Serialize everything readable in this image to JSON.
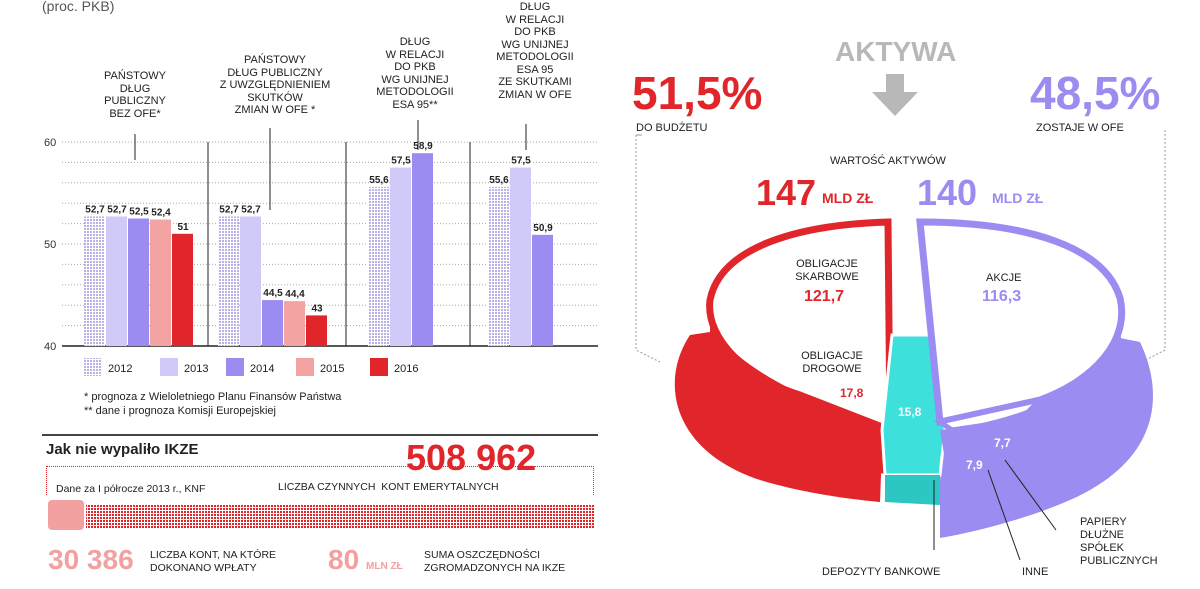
{
  "unit_note": "(proc. PKB)",
  "group_headers": [
    "PAŃSTOWY\nDŁUG\nPUBLICZNY\nBEZ OFE*",
    "PAŃSTOWY\nDŁUG PUBLICZNY\nZ UWZGLĘDNIENIEM\nSKUTKÓW\nZMIAN W OFE *",
    "DŁUG\nW RELACJI\nDO PKB\nWG UNIJNEJ\nMETODOLOGII\nESA 95**",
    "DŁUG\nW RELACJI\nDO PKB\nWG UNIJNEJ\nMETODOLOGII\nESA 95\nZE SKUTKAMI\nZMIAN W OFE"
  ],
  "footnotes": [
    "* prognoza z Wieloletniego Planu Finansów Państwa",
    "** dane i prognoza Komisji Europejskiej"
  ],
  "colors": {
    "y2012": "#dcd9f5",
    "y2013": "#cfcaf7",
    "y2014": "#9a8cf0",
    "y2015": "#f4a3a3",
    "y2016": "#e0262b",
    "teal": "#3ee0dc",
    "red": "#e0262b",
    "purple": "#9a8cf0",
    "pink": "#f2a0a0"
  },
  "chart_data": [
    {
      "type": "bar",
      "ylim": [
        40,
        60
      ],
      "yticks": [
        "40",
        "50",
        "60"
      ],
      "groups": [
        {
          "series": [
            "2012",
            "2013",
            "2014",
            "2015",
            "2016"
          ],
          "values": [
            52.7,
            52.7,
            52.5,
            52.4,
            51
          ],
          "labels": [
            "52,7",
            "52,7",
            "52,5",
            "52,4",
            "51"
          ]
        },
        {
          "series": [
            "2012",
            "2013",
            "2014",
            "2015",
            "2016"
          ],
          "values": [
            52.7,
            52.7,
            44.5,
            44.4,
            43
          ],
          "labels": [
            "52,7",
            "52,7",
            "44,5",
            "44,4",
            "43"
          ]
        },
        {
          "series": [
            "2012",
            "2013",
            "2014"
          ],
          "values": [
            55.6,
            57.5,
            58.9
          ],
          "labels": [
            "55,6",
            "57,5",
            "58,9"
          ]
        },
        {
          "series": [
            "2012",
            "2013",
            "2014"
          ],
          "values": [
            55.6,
            57.5,
            50.9
          ],
          "labels": [
            "55,6",
            "57,5",
            "50,9"
          ]
        }
      ],
      "legend": [
        "2012",
        "2013",
        "2014",
        "2015",
        "2016"
      ]
    },
    {
      "type": "pie",
      "title": "AKTYWA",
      "subtitle": "WARTOŚĆ AKTYWÓW",
      "left": {
        "percent": "51,5%",
        "caption": "DO BUDŻETU",
        "total": "147",
        "unit": "MLD ZŁ"
      },
      "right": {
        "percent": "48,5%",
        "caption": "ZOSTAJE W OFE",
        "total": "140",
        "unit": "MLD ZŁ"
      },
      "slices": [
        {
          "name": "OBLIGACJE\nSKARBOWE",
          "value": "121,7"
        },
        {
          "name": "OBLIGACJE\nDROGOWE",
          "value": "17,8"
        },
        {
          "name": "DEPOZYTY BANKOWE",
          "value": "15,8"
        },
        {
          "name": "AKCJE",
          "value": "116,3"
        },
        {
          "name": "INNE",
          "value": "7,9"
        },
        {
          "name": "PAPIERY\nDŁUŻNE\nSPÓŁEK\nPUBLICZNYCH",
          "value": "7,7"
        }
      ]
    }
  ],
  "ikze": {
    "title": "Jak nie wypaliło IKZE",
    "big_number": "508 962",
    "big_caption": "LICZBA CZYNNYCH  KONT EMERYTALNYCH",
    "source": "Dane za I półrocze 2013 r., KNF",
    "left_number": "30 386",
    "left_caption": "LICZBA KONT, NA KTÓRE\nDOKONANO WPŁATY",
    "mid_number": "80",
    "mid_unit": "MLN ZŁ",
    "mid_caption": "SUMA OSZCZĘDNOŚCI\nZGROMADZONYCH NA IKZE"
  }
}
